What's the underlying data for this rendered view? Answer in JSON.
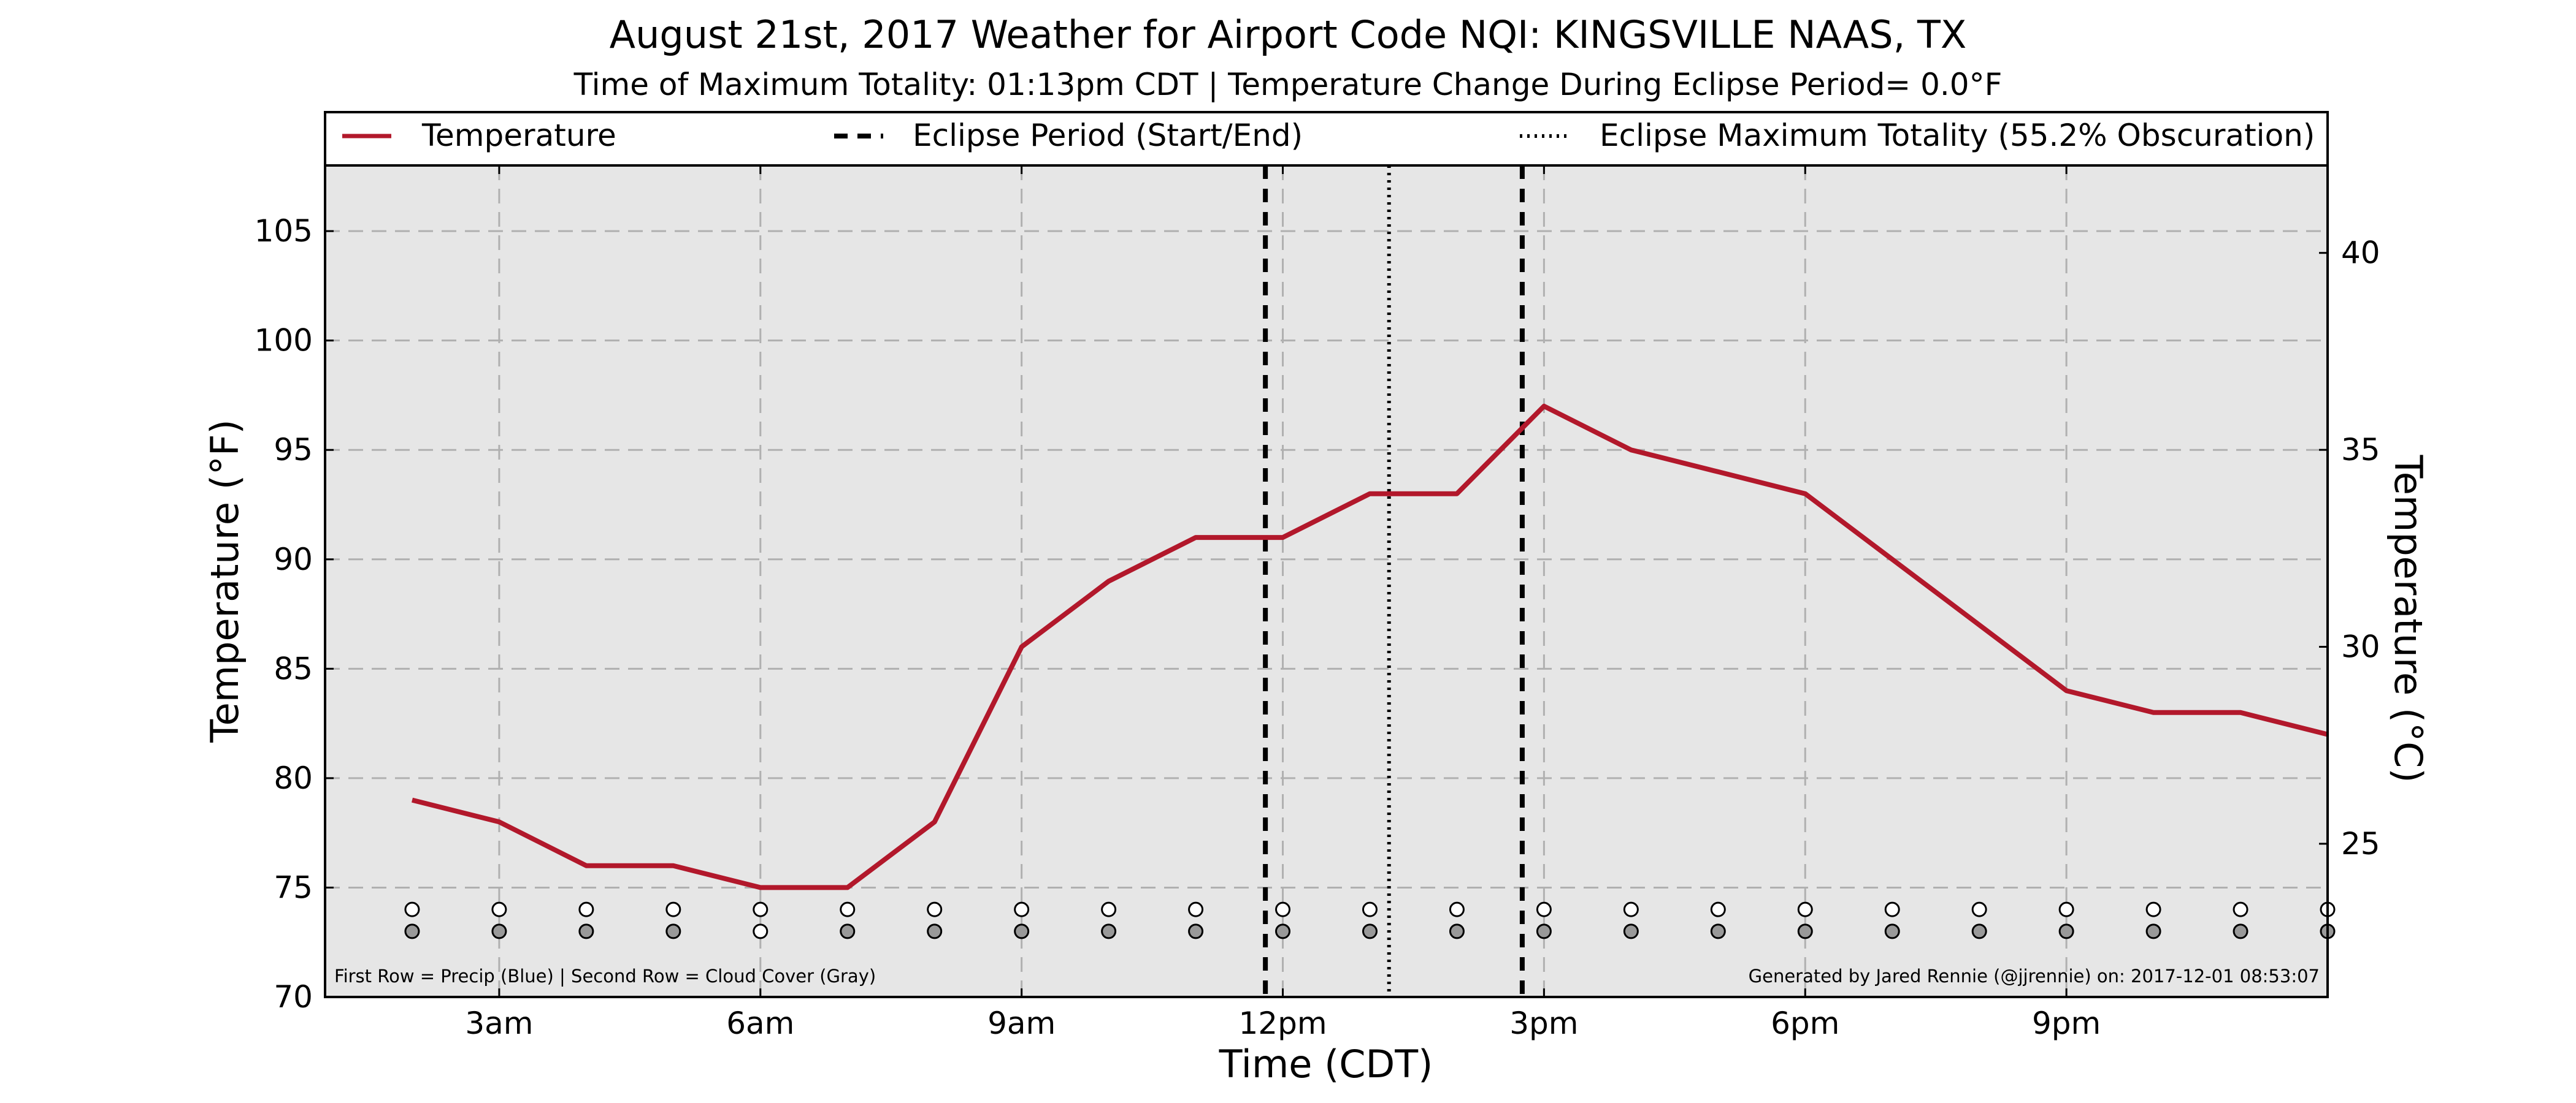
{
  "chart_data": {
    "type": "line",
    "title": "August 21st, 2017 Weather for Airport Code NQI: KINGSVILLE NAAS, TX",
    "subtitle": "Time of Maximum Totality: 01:13pm CDT | Temperature Change During Eclipse Period= 0.0°F",
    "xlabel": "Time (CDT)",
    "ylabel_left": "Temperature (°F)",
    "ylabel_right": "Temperature (°C)",
    "ylim": [
      70,
      108
    ],
    "y2lim": [
      21.11,
      42.22
    ],
    "xlim": [
      1.0,
      24.0
    ],
    "x_ticks": [
      {
        "value": 3,
        "label": "3am"
      },
      {
        "value": 6,
        "label": "6am"
      },
      {
        "value": 9,
        "label": "9am"
      },
      {
        "value": 12,
        "label": "12pm"
      },
      {
        "value": 15,
        "label": "3pm"
      },
      {
        "value": 18,
        "label": "6pm"
      },
      {
        "value": 21,
        "label": "9pm"
      }
    ],
    "y_ticks": [
      70,
      75,
      80,
      85,
      90,
      95,
      100,
      105
    ],
    "y2_ticks": [
      25,
      30,
      35,
      40
    ],
    "grid": true,
    "legend_position": "top",
    "legend": [
      {
        "label": "Temperature",
        "style": "solid"
      },
      {
        "label": "Eclipse Period (Start/End)",
        "style": "dashed"
      },
      {
        "label": "Eclipse Maximum Totality (55.2% Obscuration)",
        "style": "dotted"
      }
    ],
    "series": [
      {
        "name": "Temperature",
        "color": "#b2182b",
        "x": [
          2,
          3,
          4,
          5,
          6,
          7,
          8,
          9,
          10,
          11,
          12,
          13,
          14,
          15,
          16,
          17,
          18,
          19,
          20,
          21,
          22,
          23,
          24
        ],
        "y": [
          79,
          78,
          76,
          76,
          75,
          75,
          78,
          86,
          89,
          91,
          91,
          93,
          93,
          97,
          95,
          94,
          93,
          90,
          87,
          84,
          83,
          83,
          82
        ]
      }
    ],
    "eclipse_start": 11.8,
    "eclipse_end": 14.75,
    "eclipse_max": 13.22,
    "obs_points": {
      "x": [
        2,
        3,
        4,
        5,
        6,
        7,
        8,
        9,
        10,
        11,
        12,
        13,
        14,
        15,
        16,
        17,
        18,
        19,
        20,
        21,
        22,
        23,
        24
      ],
      "precip_y": 74,
      "cloud_y": 73,
      "precip": [
        0,
        0,
        0,
        0,
        0,
        0,
        0,
        0,
        0,
        0,
        0,
        0,
        0,
        0,
        0,
        0,
        0,
        0,
        0,
        0,
        0,
        0,
        0
      ],
      "cloud": [
        1,
        1,
        1,
        1,
        0,
        1,
        1,
        1,
        1,
        1,
        1,
        1,
        1,
        1,
        1,
        1,
        1,
        1,
        1,
        1,
        1,
        1,
        1
      ]
    },
    "colors": {
      "temperature": "#b2182b",
      "plot_background": "#e6e6e6",
      "cloud_fill": "#999999",
      "precip_fill": "#ffffff"
    },
    "footnote_left": "First Row = Precip (Blue) | Second Row = Cloud Cover (Gray)",
    "footnote_right": "Generated by Jared Rennie (@jjrennie) on: 2017-12-01 08:53:07"
  }
}
